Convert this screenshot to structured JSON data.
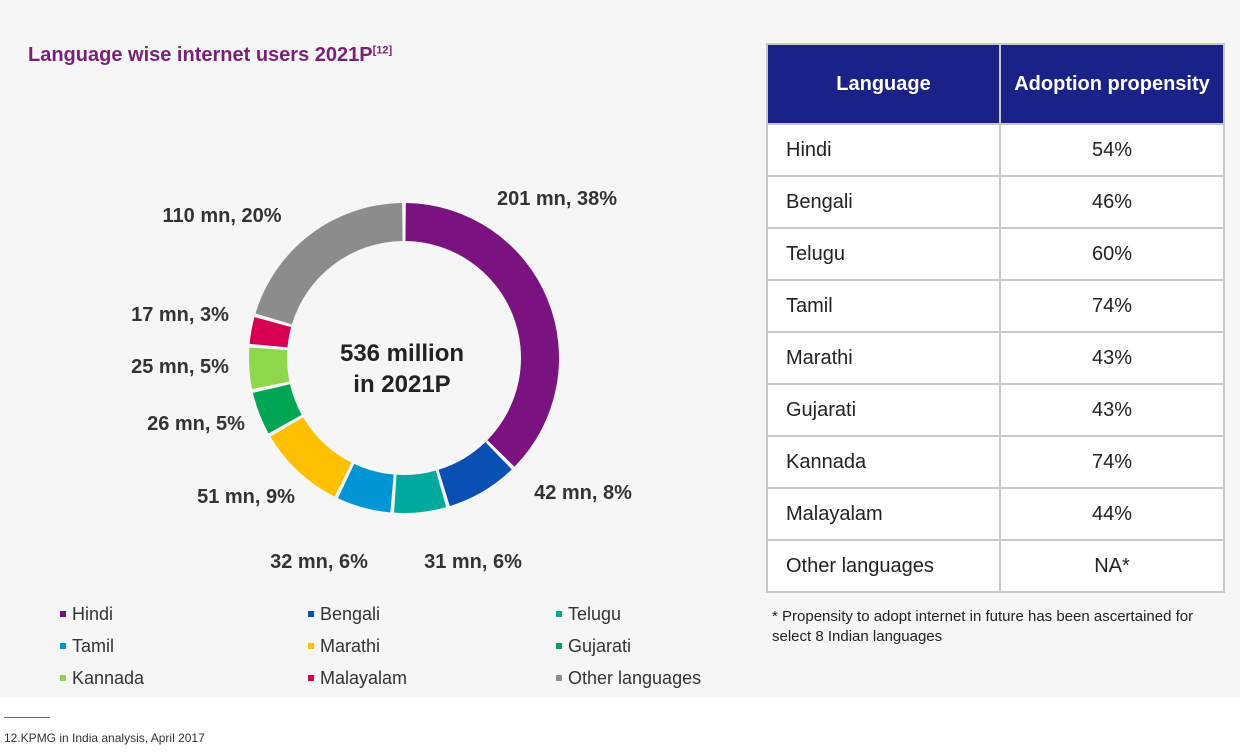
{
  "chart_data": {
    "type": "pie",
    "title": "Language wise internet users 2021P",
    "title_ref": "[12]",
    "center_label": [
      "536 million",
      "in 2021P"
    ],
    "series": [
      {
        "name": "Hindi",
        "value": 201,
        "label": "201 mn, 38%",
        "color": "#7a127f"
      },
      {
        "name": "Bengali",
        "value": 42,
        "label": "42 mn, 8%",
        "color": "#0a4fb3"
      },
      {
        "name": "Telugu",
        "value": 31,
        "label": "31 mn, 6%",
        "color": "#00a99d"
      },
      {
        "name": "Tamil",
        "value": 32,
        "label": "32 mn, 6%",
        "color": "#0096d6"
      },
      {
        "name": "Marathi",
        "value": 51,
        "label": "51 mn, 9%",
        "color": "#ffc000"
      },
      {
        "name": "Gujarati",
        "value": 26,
        "label": "26 mn, 5%",
        "color": "#00a651"
      },
      {
        "name": "Kannada",
        "value": 25,
        "label": "25 mn, 5%",
        "color": "#8ed64a"
      },
      {
        "name": "Malayalam",
        "value": 17,
        "label": "17 mn, 3%",
        "color": "#d5004f"
      },
      {
        "name": "Other languages",
        "value": 110,
        "label": "110 mn, 20%",
        "color": "#8c8c8c"
      }
    ],
    "legend_position": "bottom"
  },
  "table": {
    "headers": [
      "Language",
      "Adoption propensity"
    ],
    "rows": [
      [
        "Hindi",
        "54%"
      ],
      [
        "Bengali",
        "46%"
      ],
      [
        "Telugu",
        "60%"
      ],
      [
        "Tamil",
        "74%"
      ],
      [
        "Marathi",
        "43%"
      ],
      [
        "Gujarati",
        "43%"
      ],
      [
        "Kannada",
        "74%"
      ],
      [
        "Malayalam",
        "44%"
      ],
      [
        "Other languages",
        "NA*"
      ]
    ]
  },
  "footnote": "* Propensity to adopt internet in future has been ascertained for select 8 Indian languages",
  "source": "12.KPMG in India analysis, April 2017"
}
